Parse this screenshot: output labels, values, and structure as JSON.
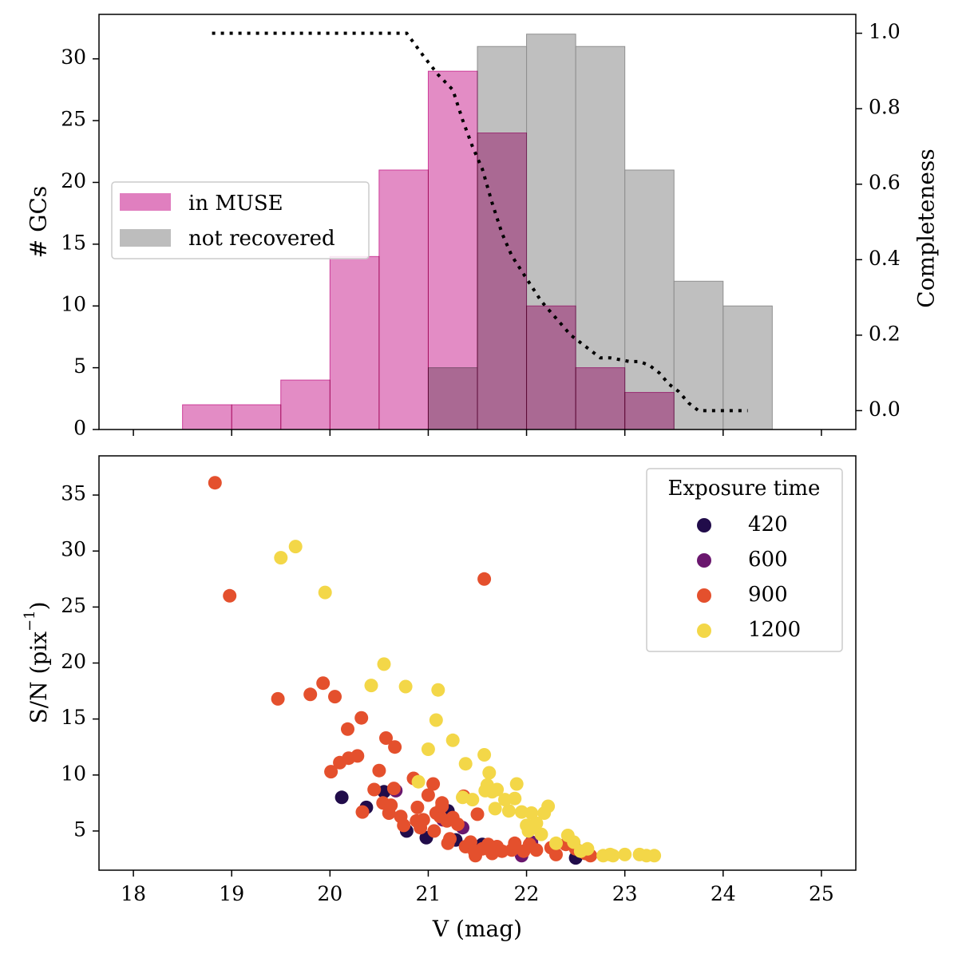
{
  "chart_data": [
    {
      "type": "bar",
      "panel": "top",
      "xlim": [
        17.65,
        25.35
      ],
      "ylim": [
        0,
        33.6
      ],
      "y2lim": [
        -0.05,
        1.05
      ],
      "ylabel": "# GCs",
      "y2label": "Completeness",
      "xticks": [
        "18",
        "19",
        "20",
        "21",
        "22",
        "23",
        "24",
        "25"
      ],
      "yticks": [
        "0",
        "5",
        "10",
        "15",
        "20",
        "25",
        "30"
      ],
      "y2ticks": [
        "0.0",
        "0.2",
        "0.4",
        "0.6",
        "0.8",
        "1.0"
      ],
      "bin_edges": [
        18.5,
        19.0,
        19.5,
        20.0,
        20.5,
        21.0,
        21.5,
        22.0,
        22.5,
        23.0,
        23.5,
        24.0,
        24.5
      ],
      "series": [
        {
          "name": "in MUSE",
          "color": "#e07fbf",
          "values": [
            2,
            2,
            4,
            14,
            21,
            29,
            24,
            10,
            5,
            3,
            0,
            0
          ]
        },
        {
          "name": "not recovered",
          "color": "#a9a9a9",
          "values": [
            0,
            0,
            0,
            0,
            0,
            5,
            31,
            32,
            31,
            21,
            12,
            10
          ]
        }
      ],
      "completeness": {
        "x": [
          18.8,
          19.5,
          20.0,
          20.5,
          20.78,
          20.95,
          21.1,
          21.25,
          21.35,
          21.45,
          21.55,
          21.65,
          21.75,
          21.85,
          21.95,
          22.05,
          22.15,
          22.25,
          22.35,
          22.45,
          22.55,
          22.65,
          22.75,
          22.85,
          22.95,
          23.05,
          23.15,
          23.25,
          23.35,
          23.45,
          23.55,
          23.65,
          23.75,
          23.85,
          24.25
        ],
        "y": [
          1.0,
          1.0,
          1.0,
          1.0,
          1.0,
          0.94,
          0.89,
          0.85,
          0.77,
          0.7,
          0.64,
          0.55,
          0.47,
          0.41,
          0.37,
          0.33,
          0.29,
          0.26,
          0.23,
          0.2,
          0.18,
          0.16,
          0.14,
          0.14,
          0.135,
          0.13,
          0.13,
          0.12,
          0.1,
          0.07,
          0.05,
          0.02,
          0.0,
          0.0,
          0.0
        ]
      },
      "legend": [
        "in MUSE",
        "not recovered"
      ]
    },
    {
      "type": "scatter",
      "panel": "bottom",
      "xlim": [
        17.65,
        25.35
      ],
      "ylim": [
        1.5,
        38.5
      ],
      "xlabel": "V (mag)",
      "ylabel_main": "S/N (pix",
      "ylabel_sup": "−1",
      "ylabel_end": ")",
      "xticks": [
        "18",
        "19",
        "20",
        "21",
        "22",
        "23",
        "24",
        "25"
      ],
      "yticks": [
        "5",
        "10",
        "15",
        "20",
        "25",
        "30",
        "35"
      ],
      "legend_title": "Exposure time",
      "series": [
        {
          "name": "420",
          "color": "#210c4a",
          "points": [
            [
              20.12,
              8.0
            ],
            [
              20.37,
              7.1
            ],
            [
              20.55,
              8.5
            ],
            [
              20.78,
              5.0
            ],
            [
              20.98,
              4.4
            ],
            [
              21.2,
              6.8
            ],
            [
              21.28,
              4.2
            ],
            [
              21.55,
              3.8
            ],
            [
              22.5,
              2.6
            ]
          ]
        },
        {
          "name": "600",
          "color": "#6a176e",
          "points": [
            [
              20.67,
              8.6
            ],
            [
              21.15,
              6.0
            ],
            [
              21.35,
              5.3
            ],
            [
              21.95,
              2.8
            ],
            [
              22.05,
              4.0
            ]
          ]
        },
        {
          "name": "900",
          "color": "#e4502d",
          "points": [
            [
              18.83,
              36.1
            ],
            [
              18.98,
              26.0
            ],
            [
              19.47,
              16.8
            ],
            [
              19.8,
              17.2
            ],
            [
              19.93,
              18.2
            ],
            [
              20.05,
              17.0
            ],
            [
              20.01,
              10.3
            ],
            [
              20.1,
              11.1
            ],
            [
              20.19,
              11.5
            ],
            [
              20.18,
              14.1
            ],
            [
              20.28,
              11.7
            ],
            [
              20.32,
              15.1
            ],
            [
              20.33,
              6.7
            ],
            [
              20.45,
              8.7
            ],
            [
              20.5,
              10.4
            ],
            [
              20.54,
              7.5
            ],
            [
              20.57,
              13.3
            ],
            [
              20.6,
              6.6
            ],
            [
              20.62,
              7.3
            ],
            [
              20.65,
              8.8
            ],
            [
              20.66,
              12.5
            ],
            [
              20.72,
              6.3
            ],
            [
              20.75,
              5.5
            ],
            [
              20.85,
              9.7
            ],
            [
              20.88,
              5.9
            ],
            [
              20.89,
              7.1
            ],
            [
              20.92,
              5.3
            ],
            [
              20.95,
              6.0
            ],
            [
              21.0,
              8.2
            ],
            [
              21.05,
              9.2
            ],
            [
              21.06,
              5.0
            ],
            [
              21.08,
              6.6
            ],
            [
              21.12,
              6.3
            ],
            [
              21.14,
              7.2
            ],
            [
              21.14,
              7.5
            ],
            [
              21.19,
              5.9
            ],
            [
              21.2,
              3.9
            ],
            [
              21.22,
              4.3
            ],
            [
              21.25,
              6.2
            ],
            [
              21.3,
              5.6
            ],
            [
              21.36,
              8.1
            ],
            [
              21.38,
              3.6
            ],
            [
              21.43,
              4.0
            ],
            [
              21.47,
              3.2
            ],
            [
              21.48,
              2.8
            ],
            [
              21.5,
              6.5
            ],
            [
              21.55,
              3.4
            ],
            [
              21.57,
              27.5
            ],
            [
              21.61,
              3.8
            ],
            [
              21.65,
              3.0
            ],
            [
              21.7,
              3.6
            ],
            [
              21.75,
              3.2
            ],
            [
              21.85,
              3.3
            ],
            [
              21.88,
              3.9
            ],
            [
              21.97,
              3.2
            ],
            [
              22.03,
              3.8
            ],
            [
              22.1,
              3.3
            ],
            [
              22.25,
              3.5
            ],
            [
              22.3,
              2.9
            ],
            [
              22.4,
              3.8
            ],
            [
              22.5,
              3.4
            ],
            [
              22.6,
              3.0
            ],
            [
              22.65,
              2.8
            ]
          ]
        },
        {
          "name": "1200",
          "color": "#f3d748",
          "points": [
            [
              19.5,
              29.4
            ],
            [
              19.65,
              30.4
            ],
            [
              19.95,
              26.3
            ],
            [
              20.42,
              18.0
            ],
            [
              20.55,
              19.9
            ],
            [
              20.77,
              17.9
            ],
            [
              20.9,
              9.4
            ],
            [
              21.0,
              12.3
            ],
            [
              21.08,
              14.9
            ],
            [
              21.1,
              17.6
            ],
            [
              21.25,
              13.1
            ],
            [
              21.35,
              8.0
            ],
            [
              21.38,
              11.0
            ],
            [
              21.45,
              7.8
            ],
            [
              21.57,
              11.8
            ],
            [
              21.58,
              8.6
            ],
            [
              21.6,
              9.1
            ],
            [
              21.62,
              10.2
            ],
            [
              21.65,
              8.5
            ],
            [
              21.68,
              7.0
            ],
            [
              21.7,
              8.7
            ],
            [
              21.78,
              7.8
            ],
            [
              21.82,
              6.8
            ],
            [
              21.88,
              7.9
            ],
            [
              21.9,
              9.2
            ],
            [
              21.95,
              6.7
            ],
            [
              22.0,
              5.5
            ],
            [
              22.02,
              5.0
            ],
            [
              22.05,
              6.6
            ],
            [
              22.07,
              5.3
            ],
            [
              22.1,
              5.7
            ],
            [
              22.15,
              4.7
            ],
            [
              22.18,
              6.6
            ],
            [
              22.22,
              7.2
            ],
            [
              22.3,
              3.9
            ],
            [
              22.42,
              4.6
            ],
            [
              22.48,
              4.0
            ],
            [
              22.55,
              3.2
            ],
            [
              22.62,
              3.4
            ],
            [
              22.78,
              2.8
            ],
            [
              22.85,
              2.9
            ],
            [
              22.88,
              2.8
            ],
            [
              23.0,
              2.9
            ],
            [
              23.15,
              2.9
            ],
            [
              23.22,
              2.8
            ],
            [
              23.3,
              2.8
            ]
          ]
        }
      ]
    }
  ]
}
